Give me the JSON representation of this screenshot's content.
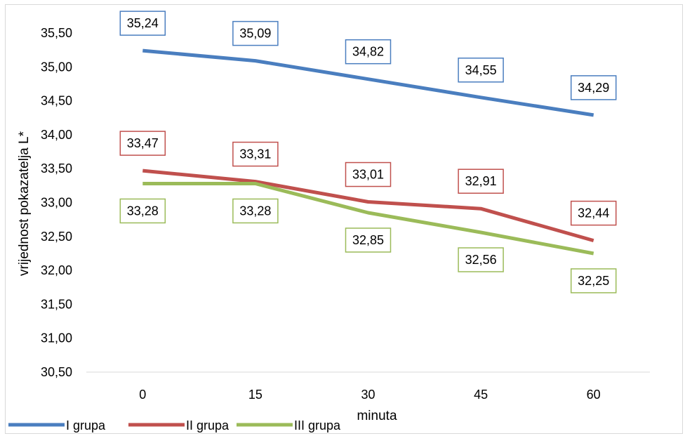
{
  "chart_data": {
    "type": "line",
    "title": "",
    "xlabel": "minuta",
    "ylabel": "vrijednost pokazatelja L*",
    "categories": [
      "0",
      "15",
      "30",
      "45",
      "60"
    ],
    "ylim": [
      30.5,
      35.5
    ],
    "ytick_step": 0.5,
    "yticks": [
      "30,50",
      "31,00",
      "31,50",
      "32,00",
      "32,50",
      "33,00",
      "33,50",
      "34,00",
      "34,50",
      "35,00",
      "35,50"
    ],
    "grid": false,
    "legend": "bottom-left",
    "series": [
      {
        "name": "I grupa",
        "color": "#4a7ebf",
        "values": [
          35.24,
          35.09,
          34.82,
          34.55,
          34.29
        ],
        "labels": [
          "35,24",
          "35,09",
          "34,82",
          "34,55",
          "34,29"
        ],
        "label_position": "above"
      },
      {
        "name": "II grupa",
        "color": "#c0504d",
        "values": [
          33.47,
          33.31,
          33.01,
          32.91,
          32.44
        ],
        "labels": [
          "33,47",
          "33,31",
          "33,01",
          "32,91",
          "32,44"
        ],
        "label_position": "above"
      },
      {
        "name": "III grupa",
        "color": "#9bbb59",
        "values": [
          33.28,
          33.28,
          32.85,
          32.56,
          32.25
        ],
        "labels": [
          "33,28",
          "33,28",
          "32,85",
          "32,56",
          "32,25"
        ],
        "label_position": "below"
      }
    ]
  }
}
